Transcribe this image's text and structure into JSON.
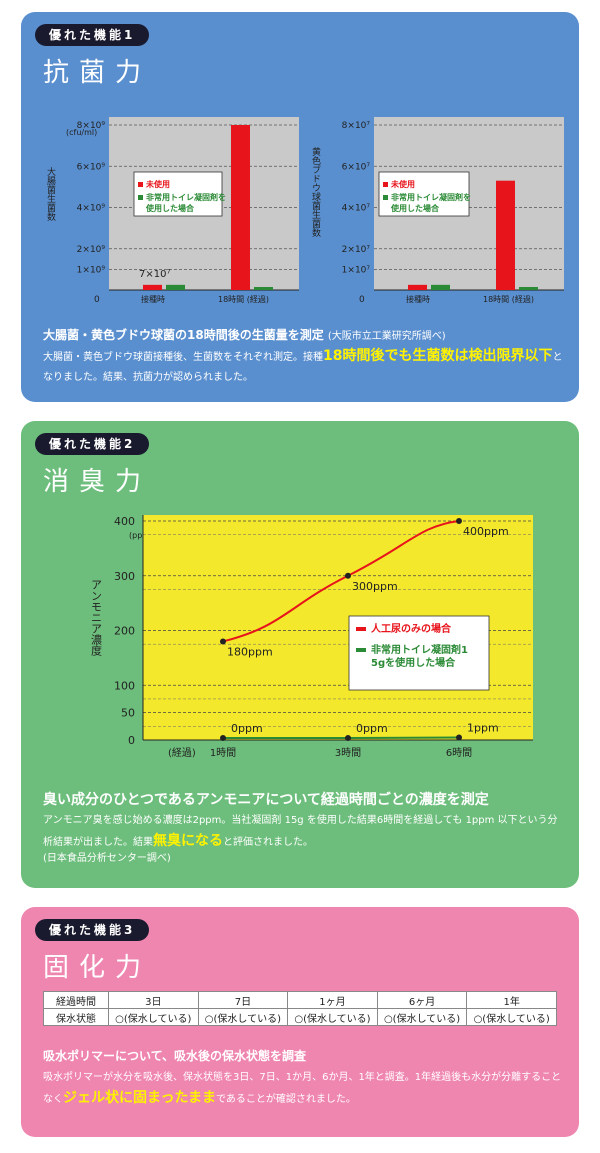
{
  "sections": [
    {
      "badge": "優れた機能1",
      "title": "抗菌力",
      "charts": [
        {
          "ylabel": "大腸菌生菌数",
          "unit": "(cfu/ml)",
          "yticks": [
            "8×10⁹",
            "6×10⁹",
            "4×10⁹",
            "2×10⁹",
            "1×10⁹"
          ],
          "zero": "0",
          "xticks": [
            "接種時",
            "18時間 (経過)"
          ],
          "annotation": "7×10⁷",
          "legend": [
            "未使用",
            "非常用トイレ凝固剤を使用した場合"
          ]
        },
        {
          "ylabel": "黄色ブドウ球菌生菌数",
          "unit": "",
          "yticks": [
            "8×10⁷",
            "6×10⁷",
            "4×10⁷",
            "2×10⁷",
            "1×10⁷"
          ],
          "zero": "0",
          "xticks": [
            "接種時",
            "18時間 (経過)"
          ],
          "annotation": "",
          "legend": [
            "未使用",
            "非常用トイレ凝固剤を使用した場合"
          ]
        }
      ],
      "heading": "大腸菌・黄色ブドウ球菌の18時間後の生菌量を測定",
      "heading_note": "(大阪市立工業研究所調べ)",
      "body_1": "大腸菌・黄色ブドウ球菌接種後、生菌数をそれぞれ測定。接種",
      "body_hl": "18時間後でも生菌数は検出限界以下",
      "body_2": "となりました。結果、抗菌力が認められました。"
    },
    {
      "badge": "優れた機能2",
      "title": "消臭力",
      "chart": {
        "ylabel": "アンモニア濃度",
        "unit": "(ppm)",
        "yticks": [
          "400",
          "300",
          "200",
          "100",
          "50",
          "0"
        ],
        "xticks": [
          "(経過)",
          "1時間",
          "3時間",
          "6時間"
        ],
        "point_labels_red": [
          "180ppm",
          "300ppm",
          "400ppm"
        ],
        "point_labels_green": [
          "0ppm",
          "0ppm",
          "1ppm"
        ],
        "legend": [
          "人工尿のみの場合",
          "非常用トイレ凝固剤15gを使用した場合"
        ]
      },
      "heading": "臭い成分のひとつであるアンモニアについて経過時間ごとの濃度を測定",
      "body_1": "アンモニア臭を感じ始める濃度は2ppm。当社凝固剤 15g を使用した結果6時間を経過しても 1ppm 以下という分析結果が出ました。結果",
      "body_hl": "無臭になる",
      "body_2": "と評価されました。",
      "note": "(日本食品分析センター調べ)"
    },
    {
      "badge": "優れた機能3",
      "title": "固化力",
      "table": {
        "headers": [
          "経過時間",
          "3日",
          "7日",
          "1ヶ月",
          "6ヶ月",
          "1年"
        ],
        "row": [
          "保水状態",
          "○(保水している)",
          "○(保水している)",
          "○(保水している)",
          "○(保水している)",
          "○(保水している)"
        ]
      },
      "heading": "吸水ポリマーについて、吸水後の保水状態を調査",
      "body_1": "吸水ポリマーが水分を吸水後、保水状態を3日、7日、1か月、6か月、1年と調査。1年経過後も水分が分離することなく",
      "body_hl": "ジェル状に固まったまま",
      "body_2": "であることが確認されました。"
    }
  ],
  "chart_data": [
    {
      "type": "bar",
      "ylabel": "大腸菌生菌数",
      "categories": [
        "接種時",
        "18時間 (経過)"
      ],
      "series": [
        {
          "name": "未使用",
          "values": [
            0.25,
            8.0
          ]
        },
        {
          "name": "非常用トイレ凝固剤を使用した場合",
          "values": [
            0.25,
            0.07
          ]
        }
      ],
      "ylim": [
        0,
        8
      ],
      "units": "×10⁹ cfu/ml",
      "color_untreated": "#e8141c",
      "color_treated": "#2a8a35"
    },
    {
      "type": "bar",
      "ylabel": "黄色ブドウ球菌生菌数",
      "categories": [
        "接種時",
        "18時間 (経過)"
      ],
      "series": [
        {
          "name": "未使用",
          "values": [
            0.25,
            5.3
          ]
        },
        {
          "name": "非常用トイレ凝固剤を使用した場合",
          "values": [
            0.25,
            0.05
          ]
        }
      ],
      "ylim": [
        0,
        8
      ],
      "units": "×10⁷",
      "color_untreated": "#e8141c",
      "color_treated": "#2a8a35"
    },
    {
      "type": "line",
      "ylabel": "アンモニア濃度",
      "x": [
        "1時間",
        "3時間",
        "6時間"
      ],
      "series": [
        {
          "name": "人工尿のみの場合",
          "values": [
            180,
            300,
            400
          ]
        },
        {
          "name": "非常用トイレ凝固剤15gを使用した場合",
          "values": [
            0,
            0,
            1
          ]
        }
      ],
      "ylim": [
        0,
        400
      ],
      "background": "#f3e82c"
    }
  ]
}
